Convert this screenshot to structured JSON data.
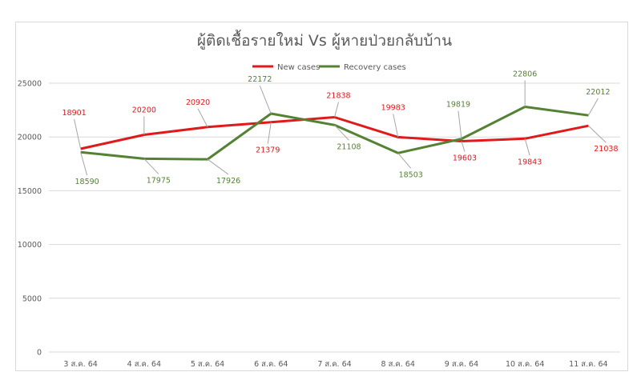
{
  "chart_data": {
    "type": "line",
    "title": "ผู้ติดเชื้อรายใหม่ Vs ผู้หายป่วยกลับบ้าน",
    "categories": [
      "3 ส.ค. 64",
      "4 ส.ค. 64",
      "5 ส.ค. 64",
      "6 ส.ค. 64",
      "7 ส.ค. 64",
      "8 ส.ค. 64",
      "9 ส.ค. 64",
      "10 ส.ค. 64",
      "11 ส.ค. 64"
    ],
    "series": [
      {
        "name": "New cases",
        "color": "#e0191b",
        "values": [
          18901,
          20200,
          20920,
          21379,
          21838,
          19983,
          19603,
          19843,
          21038
        ]
      },
      {
        "name": "Recovery cases",
        "color": "#548235",
        "values": [
          18590,
          17975,
          17926,
          22172,
          21108,
          18503,
          19819,
          22806,
          22012
        ]
      }
    ],
    "ylim": [
      0,
      25000
    ],
    "yticks": [
      0,
      5000,
      10000,
      15000,
      20000,
      25000
    ],
    "grid": true,
    "legend": "top-center",
    "xlabel": "",
    "ylabel": ""
  }
}
